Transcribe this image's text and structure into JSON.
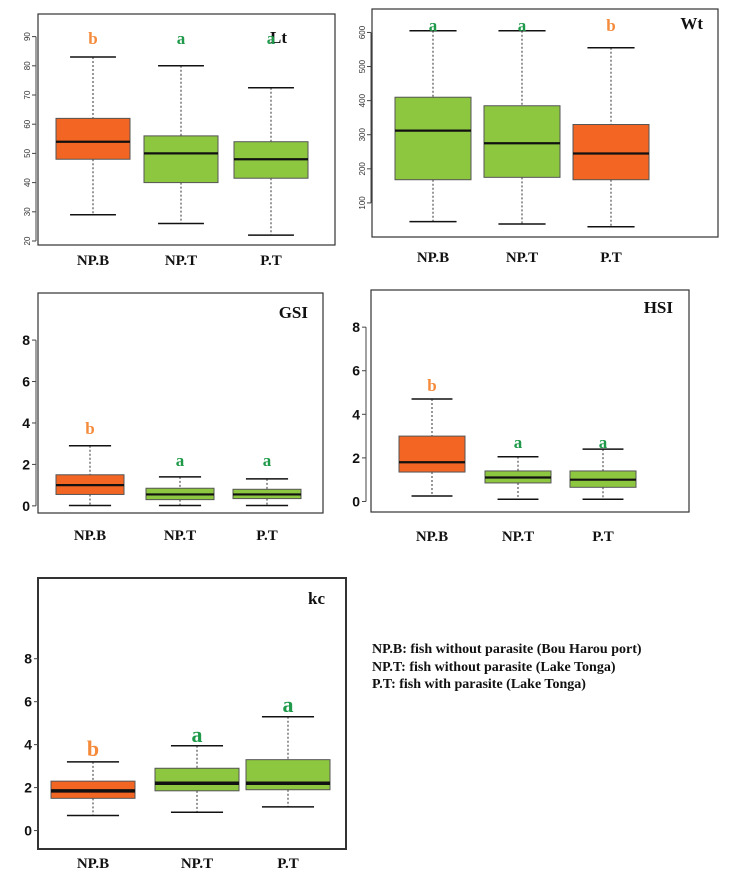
{
  "colors": {
    "orange": "#f26522",
    "green": "#8dc63f",
    "letter_orange": "#f58a3a",
    "letter_green": "#1f9a4a"
  },
  "chart_data": [
    {
      "type": "boxplot",
      "title": "Lt",
      "grid": false,
      "categories": [
        "NP.B",
        "NP.T",
        "P.T"
      ],
      "ylim": [
        20,
        95
      ],
      "yticks": [
        20,
        30,
        40,
        50,
        60,
        70,
        80,
        90
      ],
      "boxes": [
        {
          "min": 29,
          "q1": 48,
          "median": 54,
          "q3": 62,
          "max": 83,
          "color": "orange",
          "letter": "b"
        },
        {
          "min": 26,
          "q1": 40,
          "median": 50,
          "q3": 56,
          "max": 80,
          "color": "green",
          "letter": "a"
        },
        {
          "min": 22,
          "q1": 41.5,
          "median": 48,
          "q3": 54,
          "max": 72.5,
          "color": "green",
          "letter": "a"
        }
      ]
    },
    {
      "type": "boxplot",
      "title": "Wt",
      "grid": false,
      "categories": [
        "NP.B",
        "NP.T",
        "P.T"
      ],
      "ylim": [
        0,
        660
      ],
      "yticks": [
        100,
        200,
        300,
        400,
        500,
        600
      ],
      "boxes": [
        {
          "min": 45,
          "q1": 168,
          "median": 312,
          "q3": 410,
          "max": 605,
          "color": "green",
          "letter": "a"
        },
        {
          "min": 38,
          "q1": 175,
          "median": 275,
          "q3": 385,
          "max": 605,
          "color": "green",
          "letter": "a"
        },
        {
          "min": 30,
          "q1": 168,
          "median": 245,
          "q3": 330,
          "max": 555,
          "color": "orange",
          "letter": "b"
        }
      ]
    },
    {
      "type": "boxplot",
      "title": "GSI",
      "grid": false,
      "categories": [
        "NP.B",
        "NP.T",
        "P.T"
      ],
      "ylim": [
        -0.2,
        9.5
      ],
      "yticks": [
        0,
        2,
        4,
        6,
        8
      ],
      "boxes": [
        {
          "min": 0.02,
          "q1": 0.55,
          "median": 1.0,
          "q3": 1.5,
          "max": 2.9,
          "color": "orange",
          "letter": "b"
        },
        {
          "min": 0.02,
          "q1": 0.3,
          "median": 0.55,
          "q3": 0.85,
          "max": 1.4,
          "color": "green",
          "letter": "a"
        },
        {
          "min": 0.02,
          "q1": 0.35,
          "median": 0.55,
          "q3": 0.8,
          "max": 1.3,
          "color": "green",
          "letter": "a"
        }
      ]
    },
    {
      "type": "boxplot",
      "title": "HSI",
      "grid": false,
      "categories": [
        "NP.B",
        "NP.T",
        "P.T"
      ],
      "ylim": [
        -0.3,
        9.2
      ],
      "yticks": [
        0,
        2,
        4,
        6,
        8
      ],
      "boxes": [
        {
          "min": 0.25,
          "q1": 1.35,
          "median": 1.8,
          "q3": 3.0,
          "max": 4.7,
          "color": "orange",
          "letter": "b"
        },
        {
          "min": 0.1,
          "q1": 0.85,
          "median": 1.1,
          "q3": 1.4,
          "max": 2.05,
          "color": "green",
          "letter": "a"
        },
        {
          "min": 0.1,
          "q1": 0.65,
          "median": 1.0,
          "q3": 1.4,
          "max": 2.4,
          "color": "green",
          "letter": "a"
        }
      ]
    },
    {
      "type": "boxplot",
      "title": "kc",
      "grid": false,
      "categories": [
        "NP.B",
        "NP.T",
        "P.T"
      ],
      "ylim": [
        -0.3,
        10.5
      ],
      "yticks": [
        0,
        2,
        4,
        6,
        8
      ],
      "boxes": [
        {
          "min": 0.7,
          "q1": 1.5,
          "median": 1.85,
          "q3": 2.3,
          "max": 3.2,
          "color": "orange",
          "letter": "b"
        },
        {
          "min": 0.85,
          "q1": 1.85,
          "median": 2.2,
          "q3": 2.9,
          "max": 3.95,
          "color": "green",
          "letter": "a"
        },
        {
          "min": 1.1,
          "q1": 1.9,
          "median": 2.2,
          "q3": 3.3,
          "max": 5.3,
          "color": "green",
          "letter": "a"
        }
      ]
    }
  ],
  "legend": [
    "NP.B: fish without parasite (Bou Harou port)",
    "NP.T: fish without parasite (Lake Tonga)",
    "P.T: fish with parasite (Lake Tonga)"
  ]
}
